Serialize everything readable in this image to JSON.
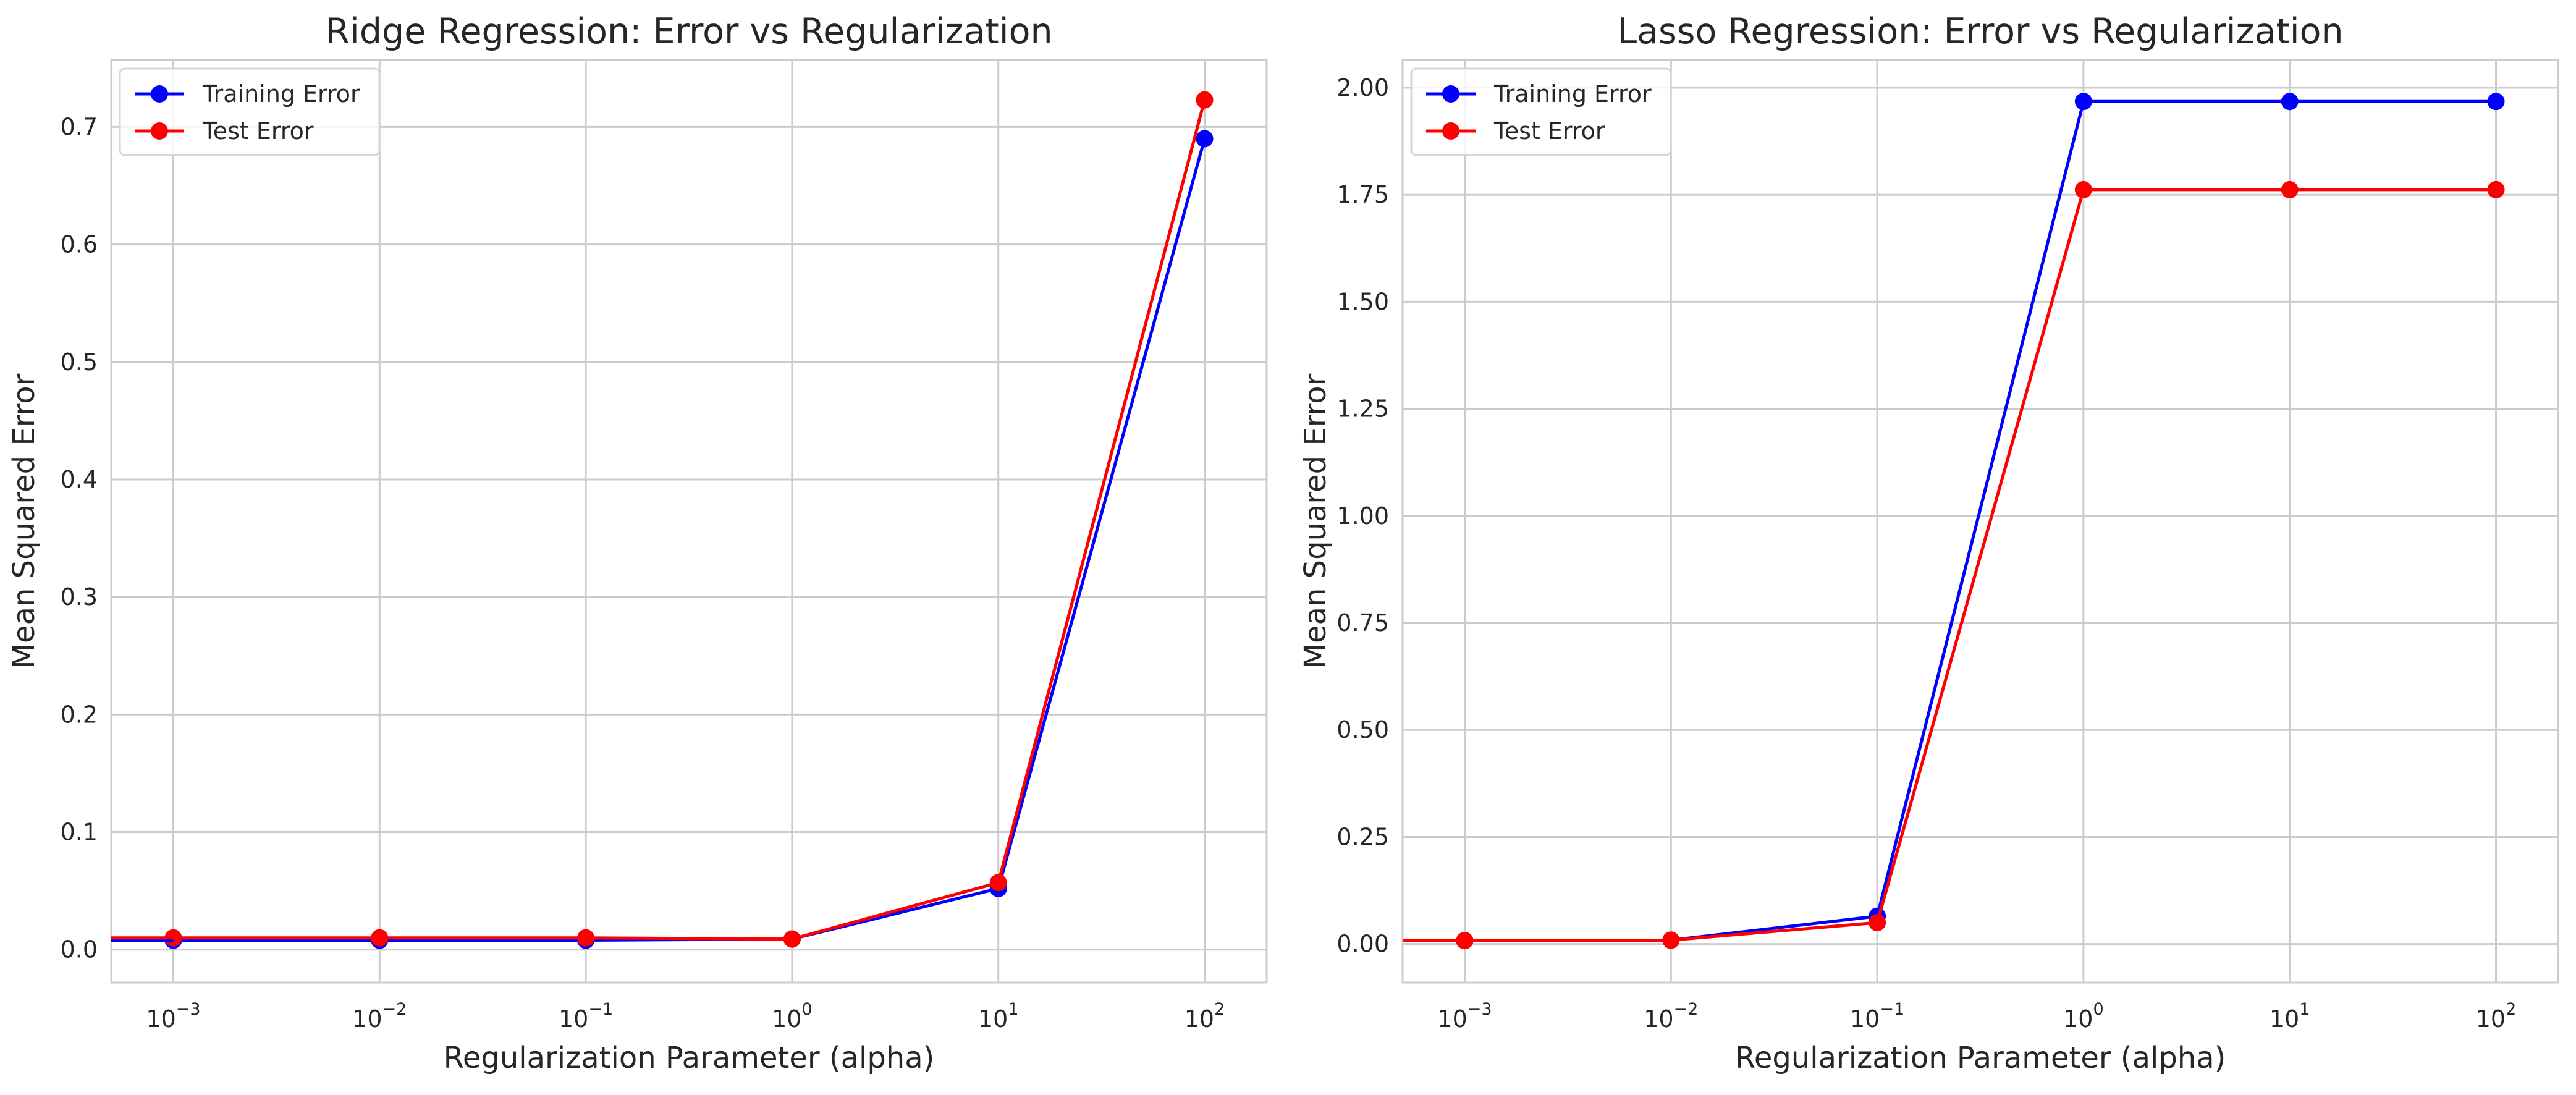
{
  "chart_data": [
    {
      "type": "line",
      "title": "Ridge Regression: Error vs Regularization",
      "xlabel": "Regularization Parameter (alpha)",
      "ylabel": "Mean Squared Error",
      "xscale": "log",
      "x": [
        0.001,
        0.01,
        0.1,
        1,
        10,
        100
      ],
      "xlim": [
        0.0005,
        200
      ],
      "xticks": [
        {
          "value": 0.001,
          "base": "10",
          "exp": "−3"
        },
        {
          "value": 0.01,
          "base": "10",
          "exp": "−2"
        },
        {
          "value": 0.1,
          "base": "10",
          "exp": "−1"
        },
        {
          "value": 1,
          "base": "10",
          "exp": "0"
        },
        {
          "value": 10,
          "base": "10",
          "exp": "1"
        },
        {
          "value": 100,
          "base": "10",
          "exp": "2"
        }
      ],
      "ylim": [
        -0.028,
        0.757
      ],
      "yticks": [
        "0.0",
        "0.1",
        "0.2",
        "0.3",
        "0.4",
        "0.5",
        "0.6",
        "0.7"
      ],
      "grid": true,
      "legend_position": "upper-left",
      "series": [
        {
          "name": "Training Error",
          "color": "#0000ff",
          "values": [
            0.008,
            0.008,
            0.008,
            0.009,
            0.052,
            0.69
          ]
        },
        {
          "name": "Test Error",
          "color": "#ff0000",
          "values": [
            0.01,
            0.01,
            0.01,
            0.009,
            0.057,
            0.723
          ]
        }
      ]
    },
    {
      "type": "line",
      "title": "Lasso Regression: Error vs Regularization",
      "xlabel": "Regularization Parameter (alpha)",
      "ylabel": "Mean Squared Error",
      "xscale": "log",
      "x": [
        0.001,
        0.01,
        0.1,
        1,
        10,
        100
      ],
      "xlim": [
        0.0005,
        200
      ],
      "xticks": [
        {
          "value": 0.001,
          "base": "10",
          "exp": "−3"
        },
        {
          "value": 0.01,
          "base": "10",
          "exp": "−2"
        },
        {
          "value": 0.1,
          "base": "10",
          "exp": "−1"
        },
        {
          "value": 1,
          "base": "10",
          "exp": "0"
        },
        {
          "value": 10,
          "base": "10",
          "exp": "1"
        },
        {
          "value": 100,
          "base": "10",
          "exp": "2"
        }
      ],
      "ylim": [
        -0.09,
        2.065
      ],
      "yticks": [
        "0.00",
        "0.25",
        "0.50",
        "0.75",
        "1.00",
        "1.25",
        "1.50",
        "1.75",
        "2.00"
      ],
      "grid": true,
      "legend_position": "upper-left",
      "series": [
        {
          "name": "Training Error",
          "color": "#0000ff",
          "values": [
            0.008,
            0.009,
            0.065,
            1.968,
            1.968,
            1.968
          ]
        },
        {
          "name": "Test Error",
          "color": "#ff0000",
          "values": [
            0.008,
            0.009,
            0.05,
            1.762,
            1.762,
            1.762
          ]
        }
      ]
    }
  ]
}
